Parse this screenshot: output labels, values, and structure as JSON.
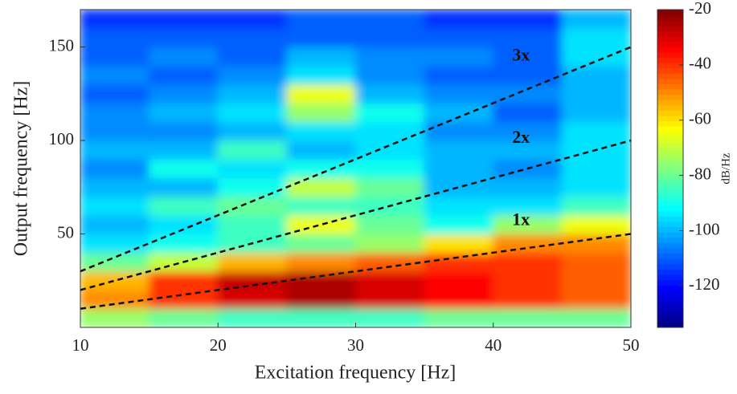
{
  "chart_data": {
    "type": "heatmap",
    "xlabel": "Excitation frequency [Hz]",
    "ylabel": "Output frequency [Hz]",
    "colorbar_label": "dB/Hz",
    "colormap": "jet",
    "clim": [
      -135,
      -20
    ],
    "cticks": [
      -20,
      -40,
      -60,
      -80,
      -100,
      -120
    ],
    "xlim": [
      10,
      50
    ],
    "ylim": [
      0,
      170
    ],
    "xticks": [
      10,
      20,
      30,
      40,
      50
    ],
    "yticks": [
      50,
      100,
      150
    ],
    "xbins": [
      10,
      15,
      20,
      25,
      30,
      35,
      40,
      45,
      50
    ],
    "ybins": [
      0,
      10,
      20,
      30,
      40,
      50,
      60,
      70,
      80,
      90,
      100,
      110,
      120,
      130,
      140,
      150,
      160,
      170
    ],
    "z": [
      [
        -75,
        -80,
        -85,
        -85,
        -85,
        -80,
        -80,
        -80
      ],
      [
        -50,
        -40,
        -30,
        -25,
        -30,
        -35,
        -40,
        -45
      ],
      [
        -55,
        -40,
        -28,
        -25,
        -30,
        -35,
        -40,
        -45
      ],
      [
        -80,
        -70,
        -55,
        -50,
        -45,
        -40,
        -40,
        -45
      ],
      [
        -95,
        -90,
        -85,
        -80,
        -75,
        -60,
        -50,
        -50
      ],
      [
        -100,
        -95,
        -85,
        -65,
        -80,
        -90,
        -75,
        -65
      ],
      [
        -95,
        -85,
        -80,
        -85,
        -85,
        -95,
        -95,
        -85
      ],
      [
        -100,
        -100,
        -90,
        -70,
        -80,
        -100,
        -100,
        -95
      ],
      [
        -105,
        -90,
        -95,
        -90,
        -90,
        -100,
        -105,
        -95
      ],
      [
        -100,
        -100,
        -85,
        -100,
        -95,
        -100,
        -100,
        -95
      ],
      [
        -105,
        -105,
        -100,
        -95,
        -95,
        -105,
        -105,
        -95
      ],
      [
        -105,
        -100,
        -95,
        -75,
        -90,
        -100,
        -110,
        -100
      ],
      [
        -110,
        -105,
        -100,
        -65,
        -100,
        -105,
        -105,
        -100
      ],
      [
        -105,
        -110,
        -105,
        -95,
        -105,
        -110,
        -110,
        -100
      ],
      [
        -110,
        -105,
        -110,
        -100,
        -105,
        -105,
        -110,
        -95
      ],
      [
        -110,
        -110,
        -110,
        -110,
        -110,
        -110,
        -110,
        -95
      ],
      [
        -115,
        -115,
        -115,
        -110,
        -110,
        -115,
        -115,
        -100
      ]
    ],
    "lines": [
      {
        "name": "1x",
        "color": "#111111",
        "x": [
          10,
          50
        ],
        "values": [
          10,
          50
        ]
      },
      {
        "name": "2x",
        "color": "#111111",
        "x": [
          10,
          50
        ],
        "values": [
          20,
          100
        ]
      },
      {
        "name": "3x",
        "color": "#111111",
        "x": [
          10,
          50
        ],
        "values": [
          30,
          150
        ]
      }
    ]
  }
}
